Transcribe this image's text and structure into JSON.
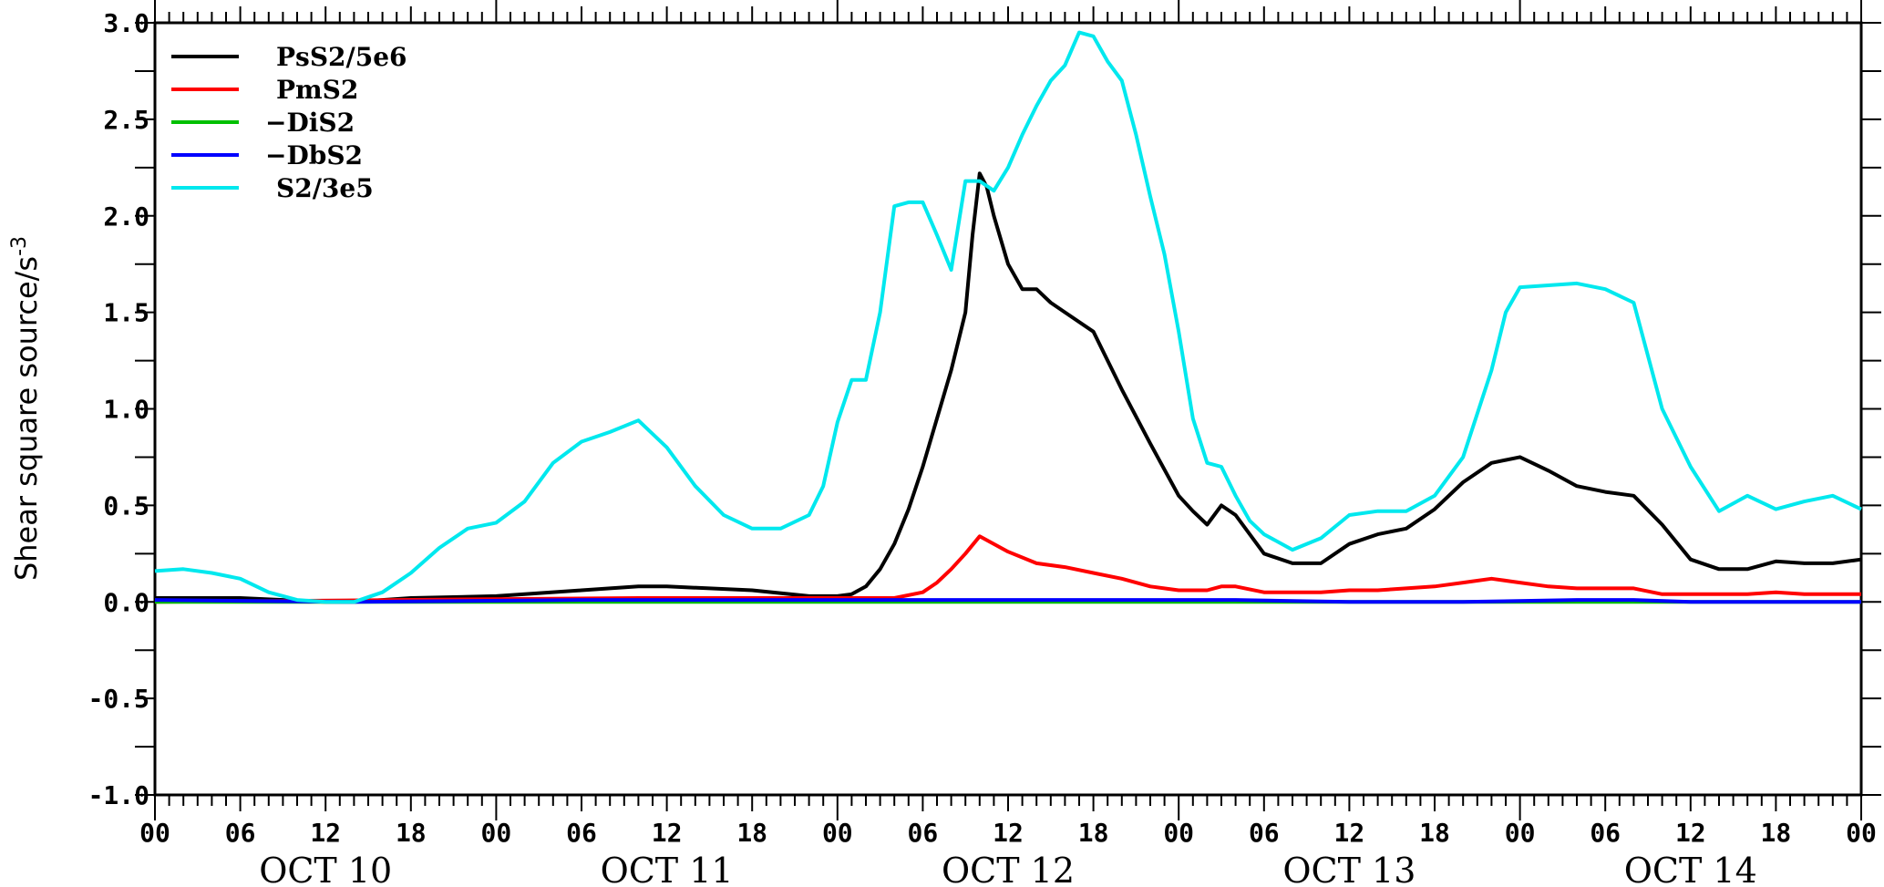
{
  "chart_data": {
    "type": "line",
    "ylabel": "Shear square source/s",
    "ylabel_superscript": "-3",
    "ylim": [
      -1.0,
      3.0
    ],
    "yticks": [
      "-1.0",
      "-0.5",
      "0.0",
      "0.5",
      "1.0",
      "1.5",
      "2.0",
      "2.5",
      "3.0"
    ],
    "ytick_values": [
      -1.0,
      -0.5,
      0.0,
      0.5,
      1.0,
      1.5,
      2.0,
      2.5,
      3.0
    ],
    "xlim_hours": [
      0,
      120
    ],
    "xtick_labels": [
      "00",
      "06",
      "12",
      "18",
      "00",
      "06",
      "12",
      "18",
      "00",
      "06",
      "12",
      "18",
      "00",
      "06",
      "12",
      "18",
      "00",
      "06",
      "12",
      "18",
      "00"
    ],
    "date_labels": [
      "OCT 10",
      "OCT 11",
      "OCT 12",
      "OCT 13",
      "OCT 14"
    ],
    "legend_position": "top-left",
    "series": [
      {
        "name": "PsS2/5e6",
        "color": "#000000",
        "x": [
          0,
          6,
          12,
          14,
          18,
          24,
          30,
          34,
          36,
          42,
          46,
          47,
          48,
          49,
          50,
          51,
          52,
          53,
          54,
          55,
          56,
          57,
          57.5,
          58,
          58.5,
          59,
          60,
          61,
          62,
          63,
          64,
          66,
          68,
          70,
          72,
          73,
          74,
          75,
          76,
          78,
          80,
          82,
          84,
          86,
          88,
          90,
          92,
          94,
          96,
          98,
          100,
          102,
          104,
          106,
          108,
          110,
          112,
          114,
          116,
          118,
          120
        ],
        "values": [
          0.02,
          0.02,
          0.0,
          0.0,
          0.02,
          0.03,
          0.06,
          0.08,
          0.08,
          0.06,
          0.03,
          0.03,
          0.03,
          0.04,
          0.08,
          0.17,
          0.3,
          0.48,
          0.7,
          0.95,
          1.2,
          1.5,
          1.9,
          2.22,
          2.15,
          2.0,
          1.75,
          1.62,
          1.62,
          1.55,
          1.5,
          1.4,
          1.1,
          0.82,
          0.55,
          0.47,
          0.4,
          0.5,
          0.45,
          0.25,
          0.2,
          0.2,
          0.3,
          0.35,
          0.38,
          0.48,
          0.62,
          0.72,
          0.75,
          0.68,
          0.6,
          0.57,
          0.55,
          0.4,
          0.22,
          0.17,
          0.17,
          0.21,
          0.2,
          0.2,
          0.22
        ]
      },
      {
        "name": "PmS2",
        "color": "#ff0000",
        "x": [
          0,
          34,
          46,
          50,
          52,
          54,
          55,
          56,
          57,
          58,
          59,
          60,
          62,
          64,
          66,
          68,
          70,
          72,
          74,
          75,
          76,
          78,
          80,
          82,
          84,
          86,
          88,
          90,
          92,
          94,
          96,
          98,
          100,
          102,
          104,
          106,
          108,
          110,
          112,
          114,
          116,
          118,
          120
        ],
        "values": [
          0.0,
          0.02,
          0.02,
          0.02,
          0.02,
          0.05,
          0.1,
          0.17,
          0.25,
          0.34,
          0.3,
          0.26,
          0.2,
          0.18,
          0.15,
          0.12,
          0.08,
          0.06,
          0.06,
          0.08,
          0.08,
          0.05,
          0.05,
          0.05,
          0.06,
          0.06,
          0.07,
          0.08,
          0.1,
          0.12,
          0.1,
          0.08,
          0.07,
          0.07,
          0.07,
          0.04,
          0.04,
          0.04,
          0.04,
          0.05,
          0.04,
          0.04,
          0.04
        ]
      },
      {
        "name": "−DiS2",
        "color": "#00c000",
        "x": [
          0,
          30,
          52,
          62,
          76,
          84,
          92,
          100,
          108,
          120
        ],
        "values": [
          0.0,
          0.0,
          0.0,
          0.0,
          0.0,
          0.0,
          0.0,
          0.0,
          0.0,
          0.0
        ]
      },
      {
        "name": "−DbS2",
        "color": "#0000ff",
        "x": [
          0,
          14,
          30,
          52,
          62,
          76,
          84,
          92,
          100,
          104,
          108,
          120
        ],
        "values": [
          0.01,
          0.0,
          0.01,
          0.01,
          0.01,
          0.01,
          0.0,
          0.0,
          0.01,
          0.01,
          0.0,
          0.0
        ]
      },
      {
        "name": "S2/3e5",
        "color": "#00e8ee",
        "x": [
          0,
          2,
          4,
          6,
          8,
          10,
          12,
          14,
          16,
          18,
          20,
          22,
          24,
          26,
          28,
          30,
          32,
          34,
          36,
          38,
          40,
          42,
          44,
          46,
          47,
          48,
          49,
          50,
          51,
          52,
          53,
          54,
          55,
          56,
          57,
          58,
          59,
          60,
          61,
          62,
          63,
          64,
          65,
          66,
          67,
          68,
          69,
          70,
          71,
          72,
          73,
          74,
          75,
          76,
          77,
          78,
          80,
          82,
          84,
          86,
          88,
          90,
          92,
          94,
          95,
          96,
          98,
          100,
          102,
          104,
          106,
          108,
          110,
          112,
          114,
          116,
          118,
          120
        ],
        "values": [
          0.16,
          0.17,
          0.15,
          0.12,
          0.05,
          0.01,
          0.0,
          0.0,
          0.05,
          0.15,
          0.28,
          0.38,
          0.41,
          0.52,
          0.72,
          0.83,
          0.88,
          0.94,
          0.8,
          0.6,
          0.45,
          0.38,
          0.38,
          0.45,
          0.6,
          0.93,
          1.15,
          1.15,
          1.5,
          2.05,
          2.07,
          2.07,
          1.9,
          1.72,
          2.18,
          2.18,
          2.13,
          2.25,
          2.42,
          2.57,
          2.7,
          2.78,
          2.95,
          2.93,
          2.8,
          2.7,
          2.42,
          2.1,
          1.8,
          1.4,
          0.95,
          0.72,
          0.7,
          0.55,
          0.42,
          0.35,
          0.27,
          0.33,
          0.45,
          0.47,
          0.47,
          0.55,
          0.75,
          1.2,
          1.5,
          1.63,
          1.64,
          1.65,
          1.62,
          1.55,
          1.0,
          0.7,
          0.47,
          0.55,
          0.48,
          0.52,
          0.55,
          0.48
        ]
      }
    ]
  }
}
